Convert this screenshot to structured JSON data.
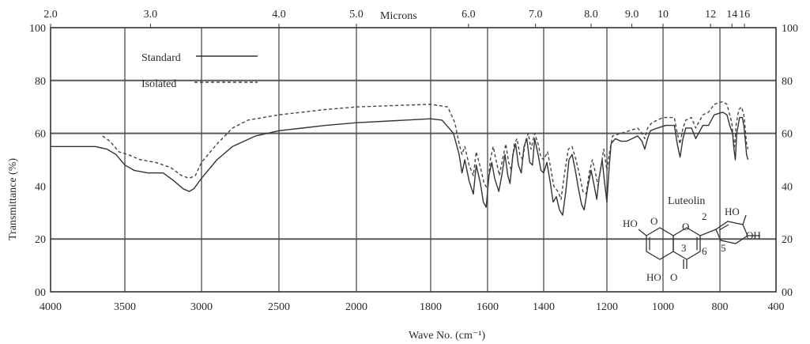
{
  "chart_data": {
    "type": "line",
    "title": "",
    "xlabel": "Wave No. (cm⁻¹)",
    "ylabel": "Transmittance (%)",
    "top_axis_label": "Microns",
    "xlim": [
      4000,
      400
    ],
    "ylim": [
      0,
      100
    ],
    "grid": true,
    "legend_position": "top-left",
    "x_ticks": [
      {
        "label": "4000",
        "value": 4000
      },
      {
        "label": "3500",
        "value": 3500
      },
      {
        "label": "3000",
        "value": 3000
      },
      {
        "label": "2500",
        "value": 2500
      },
      {
        "label": "2000",
        "value": 2000
      },
      {
        "label": "1800",
        "value": 1800
      },
      {
        "label": "1600",
        "value": 1600
      },
      {
        "label": "1400",
        "value": 1400
      },
      {
        "label": "1200",
        "value": 1200
      },
      {
        "label": "1000",
        "value": 1000
      },
      {
        "label": "800",
        "value": 800
      },
      {
        "label": "400",
        "value": 400
      }
    ],
    "top_ticks": [
      {
        "label": "2.0",
        "value": 4000
      },
      {
        "label": "3.0",
        "value": 3333
      },
      {
        "label": "4.0",
        "value": 2500
      },
      {
        "label": "5.0",
        "value": 2000
      },
      {
        "label": "6.0",
        "value": 1667
      },
      {
        "label": "7.0",
        "value": 1429
      },
      {
        "label": "8.0",
        "value": 1250
      },
      {
        "label": "9.0",
        "value": 1111
      },
      {
        "label": "10",
        "value": 1000
      },
      {
        "label": "12",
        "value": 833
      },
      {
        "label": "14",
        "value": 714
      },
      {
        "label": "16",
        "value": 625
      }
    ],
    "y_ticks_left": [
      "00",
      "20",
      "40",
      "60",
      "80",
      "100"
    ],
    "y_ticks_right": [
      "00",
      "20",
      "40",
      "60",
      "80",
      "100"
    ],
    "series": [
      {
        "name": "Standard",
        "style": "solid",
        "color": "#333333",
        "points": [
          [
            4000,
            55
          ],
          [
            3700,
            55
          ],
          [
            3620,
            54
          ],
          [
            3560,
            52
          ],
          [
            3500,
            48
          ],
          [
            3440,
            46
          ],
          [
            3350,
            45
          ],
          [
            3250,
            45
          ],
          [
            3180,
            42
          ],
          [
            3120,
            39
          ],
          [
            3080,
            38
          ],
          [
            3050,
            39
          ],
          [
            3000,
            43
          ],
          [
            2900,
            50
          ],
          [
            2800,
            55
          ],
          [
            2650,
            59
          ],
          [
            2500,
            61
          ],
          [
            2200,
            63
          ],
          [
            2000,
            64
          ],
          [
            1800,
            65.5
          ],
          [
            1760,
            65
          ],
          [
            1720,
            60
          ],
          [
            1700,
            52
          ],
          [
            1690,
            45
          ],
          [
            1680,
            50
          ],
          [
            1665,
            42
          ],
          [
            1650,
            37
          ],
          [
            1640,
            48
          ],
          [
            1625,
            41
          ],
          [
            1615,
            34
          ],
          [
            1605,
            32
          ],
          [
            1595,
            44
          ],
          [
            1585,
            49
          ],
          [
            1575,
            43
          ],
          [
            1560,
            38
          ],
          [
            1548,
            45
          ],
          [
            1538,
            52
          ],
          [
            1528,
            44
          ],
          [
            1520,
            41
          ],
          [
            1510,
            52
          ],
          [
            1500,
            56
          ],
          [
            1490,
            48
          ],
          [
            1480,
            45
          ],
          [
            1470,
            55
          ],
          [
            1460,
            58
          ],
          [
            1450,
            49
          ],
          [
            1440,
            48
          ],
          [
            1432,
            58
          ],
          [
            1420,
            52
          ],
          [
            1410,
            46
          ],
          [
            1400,
            45
          ],
          [
            1390,
            49
          ],
          [
            1380,
            42
          ],
          [
            1370,
            34
          ],
          [
            1360,
            36
          ],
          [
            1350,
            31
          ],
          [
            1340,
            29
          ],
          [
            1330,
            38
          ],
          [
            1320,
            50
          ],
          [
            1310,
            52
          ],
          [
            1300,
            46
          ],
          [
            1290,
            39
          ],
          [
            1280,
            33
          ],
          [
            1272,
            31
          ],
          [
            1260,
            40
          ],
          [
            1250,
            46
          ],
          [
            1240,
            40
          ],
          [
            1232,
            35
          ],
          [
            1225,
            43
          ],
          [
            1215,
            50
          ],
          [
            1208,
            42
          ],
          [
            1200,
            34
          ],
          [
            1192,
            47
          ],
          [
            1185,
            56
          ],
          [
            1170,
            58
          ],
          [
            1150,
            57
          ],
          [
            1130,
            57
          ],
          [
            1110,
            58
          ],
          [
            1090,
            59
          ],
          [
            1075,
            57
          ],
          [
            1065,
            54
          ],
          [
            1055,
            58
          ],
          [
            1045,
            61
          ],
          [
            1020,
            62
          ],
          [
            990,
            63
          ],
          [
            960,
            63
          ],
          [
            950,
            56
          ],
          [
            940,
            51
          ],
          [
            930,
            58
          ],
          [
            920,
            62
          ],
          [
            900,
            62
          ],
          [
            885,
            58
          ],
          [
            875,
            60
          ],
          [
            860,
            63
          ],
          [
            840,
            63
          ],
          [
            820,
            67
          ],
          [
            780,
            68
          ],
          [
            750,
            67
          ],
          [
            730,
            63
          ],
          [
            710,
            60
          ],
          [
            700,
            54
          ],
          [
            690,
            50
          ],
          [
            680,
            60
          ],
          [
            660,
            66
          ],
          [
            640,
            66
          ],
          [
            630,
            63
          ],
          [
            620,
            58
          ],
          [
            610,
            52
          ],
          [
            600,
            50
          ]
        ]
      },
      {
        "name": "Isolated",
        "style": "dashed",
        "color": "#444444",
        "points": [
          [
            3650,
            59
          ],
          [
            3600,
            57
          ],
          [
            3540,
            53
          ],
          [
            3480,
            52
          ],
          [
            3400,
            50
          ],
          [
            3300,
            49
          ],
          [
            3200,
            47
          ],
          [
            3130,
            44
          ],
          [
            3080,
            43
          ],
          [
            3040,
            44
          ],
          [
            3000,
            49
          ],
          [
            2900,
            56
          ],
          [
            2800,
            62
          ],
          [
            2700,
            65
          ],
          [
            2500,
            67
          ],
          [
            2200,
            69
          ],
          [
            2000,
            70
          ],
          [
            1800,
            71
          ],
          [
            1740,
            70
          ],
          [
            1715,
            64
          ],
          [
            1700,
            56
          ],
          [
            1690,
            52
          ],
          [
            1680,
            55
          ],
          [
            1665,
            48
          ],
          [
            1650,
            44
          ],
          [
            1640,
            53
          ],
          [
            1625,
            47
          ],
          [
            1612,
            41
          ],
          [
            1600,
            39
          ],
          [
            1590,
            50
          ],
          [
            1580,
            55
          ],
          [
            1570,
            50
          ],
          [
            1558,
            44
          ],
          [
            1545,
            51
          ],
          [
            1535,
            56
          ],
          [
            1525,
            49
          ],
          [
            1515,
            46
          ],
          [
            1505,
            56
          ],
          [
            1495,
            58
          ],
          [
            1485,
            52
          ],
          [
            1475,
            50
          ],
          [
            1465,
            57
          ],
          [
            1455,
            60
          ],
          [
            1445,
            54
          ],
          [
            1432,
            60
          ],
          [
            1420,
            56
          ],
          [
            1410,
            51
          ],
          [
            1400,
            50
          ],
          [
            1388,
            53
          ],
          [
            1378,
            47
          ],
          [
            1368,
            40
          ],
          [
            1355,
            38
          ],
          [
            1345,
            35
          ],
          [
            1335,
            44
          ],
          [
            1322,
            54
          ],
          [
            1310,
            55
          ],
          [
            1298,
            50
          ],
          [
            1286,
            44
          ],
          [
            1276,
            38
          ],
          [
            1266,
            37
          ],
          [
            1256,
            45
          ],
          [
            1246,
            50
          ],
          [
            1236,
            45
          ],
          [
            1228,
            40
          ],
          [
            1218,
            48
          ],
          [
            1210,
            54
          ],
          [
            1200,
            46
          ],
          [
            1192,
            52
          ],
          [
            1180,
            59
          ],
          [
            1150,
            60
          ],
          [
            1120,
            61
          ],
          [
            1090,
            62
          ],
          [
            1075,
            60
          ],
          [
            1065,
            58
          ],
          [
            1055,
            62
          ],
          [
            1040,
            64
          ],
          [
            1000,
            66
          ],
          [
            960,
            66
          ],
          [
            950,
            60
          ],
          [
            940,
            56
          ],
          [
            930,
            62
          ],
          [
            920,
            65
          ],
          [
            900,
            66
          ],
          [
            885,
            62
          ],
          [
            875,
            64
          ],
          [
            860,
            67
          ],
          [
            840,
            68
          ],
          [
            820,
            71
          ],
          [
            780,
            72
          ],
          [
            750,
            71
          ],
          [
            730,
            67
          ],
          [
            715,
            64
          ],
          [
            705,
            58
          ],
          [
            695,
            55
          ],
          [
            685,
            63
          ],
          [
            665,
            69
          ],
          [
            645,
            70
          ],
          [
            630,
            67
          ],
          [
            620,
            62
          ],
          [
            610,
            56
          ],
          [
            600,
            54
          ]
        ]
      }
    ]
  },
  "molecule": {
    "name": "Luteolin",
    "labels": {
      "ho_top_left": "HO",
      "o_top_left": "O",
      "o_ring": "O",
      "ho_bottom": "HO",
      "o_bottom": "O",
      "pos_2": "2",
      "pos_3": "3",
      "pos_5": "5",
      "pos_6": "6",
      "ho_right": "HO",
      "oh_right": "OH"
    }
  }
}
